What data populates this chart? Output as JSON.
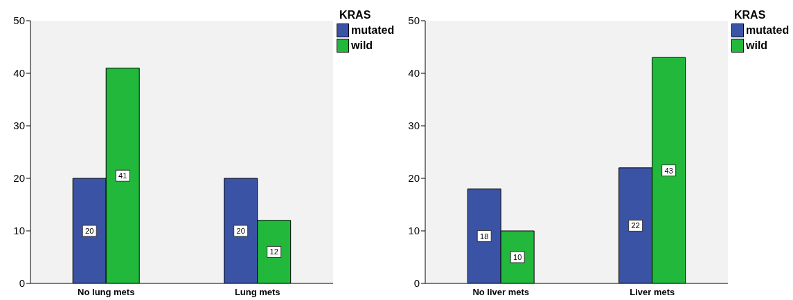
{
  "chart_data": [
    {
      "type": "bar",
      "categories": [
        "No lung mets",
        "Lung mets"
      ],
      "legend_title": "KRAS",
      "legend": "top right",
      "ylim": [
        0,
        50
      ],
      "yticks": [
        0,
        10,
        20,
        30,
        40,
        50
      ],
      "data_labels": true,
      "series": [
        {
          "name": "mutated",
          "color": "#3a53a4",
          "values": [
            20,
            20
          ]
        },
        {
          "name": "wild",
          "color": "#22b83c",
          "values": [
            41,
            12
          ]
        }
      ]
    },
    {
      "type": "bar",
      "categories": [
        "No liver mets",
        "Liver mets"
      ],
      "legend_title": "KRAS",
      "legend": "top right",
      "ylim": [
        0,
        50
      ],
      "yticks": [
        0,
        10,
        20,
        30,
        40,
        50
      ],
      "data_labels": true,
      "series": [
        {
          "name": "mutated",
          "color": "#3a53a4",
          "values": [
            18,
            22
          ]
        },
        {
          "name": "wild",
          "color": "#22b83c",
          "values": [
            10,
            43
          ]
        }
      ]
    }
  ]
}
